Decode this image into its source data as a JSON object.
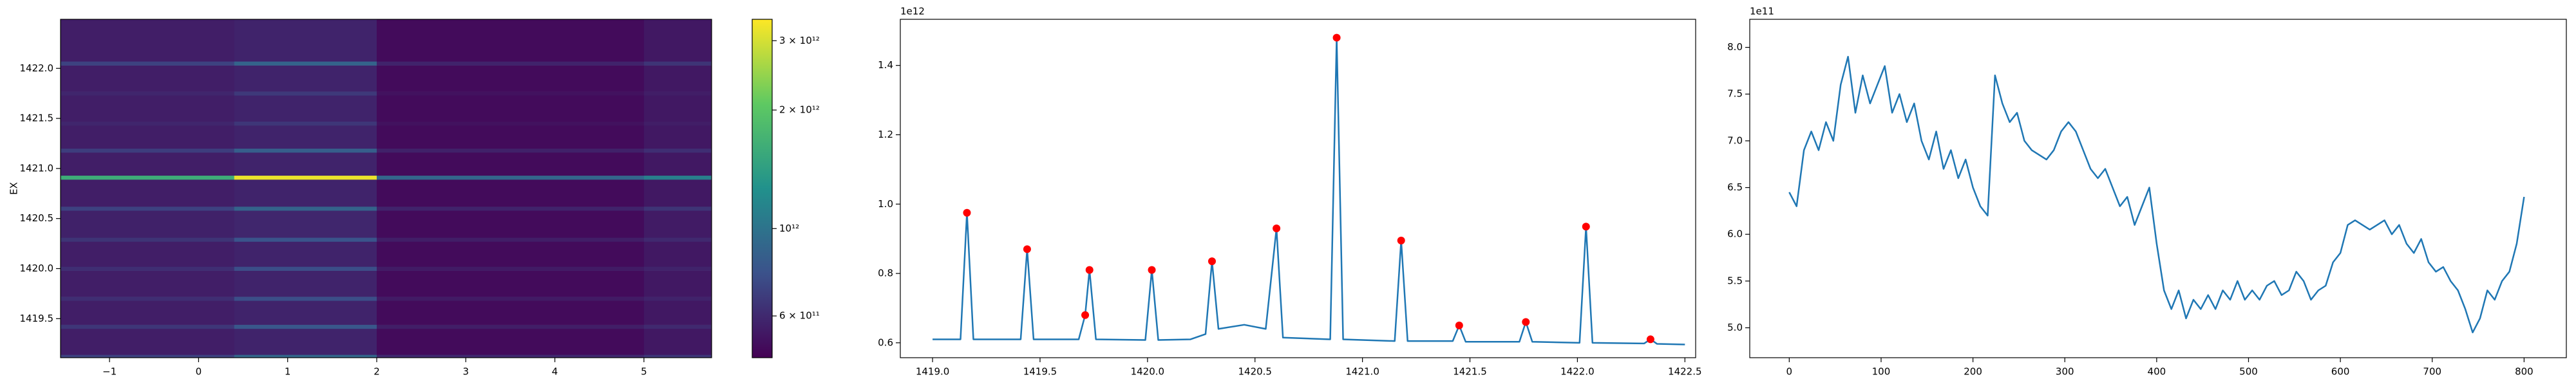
{
  "chart_data": [
    {
      "type": "heatmap",
      "ylabel": "EX",
      "xlim": [
        -1.55,
        5.76
      ],
      "ylim": [
        1419.11,
        1422.49
      ],
      "xticks": [
        {
          "value": -1,
          "label": "−1"
        },
        0,
        1,
        2,
        3,
        4,
        5
      ],
      "yticks": [
        1419.5,
        {
          "value": 1420,
          "label": "1420.0"
        },
        1420.5,
        {
          "value": 1421,
          "label": "1421.0"
        },
        1421.5,
        {
          "value": 1422,
          "label": "1422.0"
        }
      ],
      "colormap": [
        "#440154",
        "#3b528b",
        "#21918c",
        "#5ec962",
        "#fde725"
      ],
      "x_edges": [
        -1.55,
        0.4,
        2.0,
        5.0,
        5.76
      ],
      "y_edges": [
        1419.11,
        1419.14,
        1419.4,
        1419.44,
        1419.68,
        1419.72,
        1419.98,
        1420.02,
        1420.27,
        1420.31,
        1420.58,
        1420.62,
        1420.89,
        1420.93,
        1421.16,
        1421.2,
        1421.43,
        1421.47,
        1421.73,
        1421.77,
        1422.03,
        1422.07,
        1422.49
      ],
      "z": [
        [
          700000000000.0,
          900000000000.0,
          600000000000.0,
          650000000000.0
        ],
        [
          560000000000.0,
          580000000000.0,
          500000000000.0,
          540000000000.0
        ],
        [
          650000000000.0,
          800000000000.0,
          560000000000.0,
          600000000000.0
        ],
        [
          560000000000.0,
          580000000000.0,
          500000000000.0,
          540000000000.0
        ],
        [
          620000000000.0,
          750000000000.0,
          550000000000.0,
          580000000000.0
        ],
        [
          560000000000.0,
          580000000000.0,
          500000000000.0,
          540000000000.0
        ],
        [
          620000000000.0,
          750000000000.0,
          550000000000.0,
          580000000000.0
        ],
        [
          560000000000.0,
          580000000000.0,
          500000000000.0,
          540000000000.0
        ],
        [
          640000000000.0,
          780000000000.0,
          560000000000.0,
          600000000000.0
        ],
        [
          570000000000.0,
          590000000000.0,
          500000000000.0,
          550000000000.0
        ],
        [
          700000000000.0,
          880000000000.0,
          580000000000.0,
          640000000000.0
        ],
        [
          560000000000.0,
          580000000000.0,
          500000000000.0,
          540000000000.0
        ],
        [
          1600000000000.0,
          3200000000000.0,
          900000000000.0,
          1100000000000.0
        ],
        [
          560000000000.0,
          580000000000.0,
          500000000000.0,
          540000000000.0
        ],
        [
          680000000000.0,
          850000000000.0,
          570000000000.0,
          620000000000.0
        ],
        [
          560000000000.0,
          580000000000.0,
          500000000000.0,
          540000000000.0
        ],
        [
          590000000000.0,
          650000000000.0,
          520000000000.0,
          560000000000.0
        ],
        [
          560000000000.0,
          580000000000.0,
          500000000000.0,
          540000000000.0
        ],
        [
          590000000000.0,
          660000000000.0,
          520000000000.0,
          560000000000.0
        ],
        [
          560000000000.0,
          580000000000.0,
          500000000000.0,
          540000000000.0
        ],
        [
          700000000000.0,
          880000000000.0,
          580000000000.0,
          640000000000.0
        ],
        [
          560000000000.0,
          580000000000.0,
          500000000000.0,
          540000000000.0
        ]
      ],
      "colorbar": {
        "scale": "log",
        "clim": [
          470000000000.0,
          3400000000000.0
        ],
        "ticks": [
          {
            "value": 600000000000.0,
            "label": "6 × 10¹¹"
          },
          {
            "value": 1000000000000.0,
            "label": "10¹²"
          },
          {
            "value": 2000000000000.0,
            "label": "2 × 10¹²"
          },
          {
            "value": 3000000000000.0,
            "label": "3 × 10¹²"
          }
        ]
      }
    },
    {
      "type": "line",
      "offset_label": "1e12",
      "xlim": [
        1418.85,
        1422.55
      ],
      "ylim": [
        0.557,
        1.533
      ],
      "xticks": [
        {
          "value": 1419,
          "label": "1419.0"
        },
        1419.5,
        {
          "value": 1420,
          "label": "1420.0"
        },
        1420.5,
        {
          "value": 1421,
          "label": "1421.0"
        },
        1421.5,
        {
          "value": 1422,
          "label": "1422.0"
        },
        1422.5
      ],
      "yticks": [
        0.6,
        0.8,
        {
          "value": 1,
          "label": "1.0"
        },
        1.2,
        1.4
      ],
      "series": [
        {
          "style": "line",
          "color": "#1f77b4",
          "x": [
            1419.0,
            1419.13,
            1419.16,
            1419.19,
            1419.41,
            1419.44,
            1419.47,
            1419.68,
            1419.71,
            1419.73,
            1419.76,
            1419.99,
            1420.02,
            1420.05,
            1420.2,
            1420.27,
            1420.3,
            1420.33,
            1420.45,
            1420.55,
            1420.6,
            1420.63,
            1420.85,
            1420.88,
            1420.91,
            1421.15,
            1421.18,
            1421.21,
            1421.42,
            1421.45,
            1421.48,
            1421.73,
            1421.76,
            1421.79,
            1422.01,
            1422.04,
            1422.07,
            1422.31,
            1422.34,
            1422.37,
            1422.5
          ],
          "values": [
            0.61,
            0.61,
            0.975,
            0.61,
            0.61,
            0.87,
            0.61,
            0.61,
            0.68,
            0.81,
            0.61,
            0.608,
            0.81,
            0.608,
            0.61,
            0.625,
            0.835,
            0.64,
            0.652,
            0.64,
            0.93,
            0.615,
            0.61,
            1.48,
            0.61,
            0.605,
            0.895,
            0.605,
            0.605,
            0.65,
            0.603,
            0.603,
            0.66,
            0.603,
            0.6,
            0.935,
            0.6,
            0.598,
            0.61,
            0.597,
            0.595
          ]
        },
        {
          "style": "markers",
          "color": "#ff0000",
          "x": [
            1419.16,
            1419.44,
            1419.71,
            1419.73,
            1420.02,
            1420.3,
            1420.6,
            1420.88,
            1421.18,
            1421.45,
            1421.76,
            1422.04,
            1422.34
          ],
          "values": [
            0.975,
            0.87,
            0.68,
            0.81,
            0.81,
            0.835,
            0.93,
            1.48,
            0.895,
            0.65,
            0.66,
            0.935,
            0.61
          ]
        }
      ]
    },
    {
      "type": "line",
      "offset_label": "1e11",
      "xlim": [
        -43,
        846
      ],
      "ylim": [
        4.68,
        8.3
      ],
      "xticks": [
        0,
        100,
        200,
        300,
        400,
        500,
        600,
        700,
        800
      ],
      "yticks": [
        {
          "value": 5,
          "label": "5.0"
        },
        5.5,
        {
          "value": 6,
          "label": "6.0"
        },
        6.5,
        {
          "value": 7,
          "label": "7.0"
        },
        7.5,
        {
          "value": 8,
          "label": "8.0"
        }
      ],
      "series": [
        {
          "style": "line",
          "color": "#1f77b4",
          "x": [
            0,
            8,
            16,
            24,
            32,
            40,
            48,
            56,
            64,
            72,
            80,
            88,
            96,
            104,
            112,
            120,
            128,
            136,
            144,
            152,
            160,
            168,
            176,
            184,
            192,
            200,
            208,
            216,
            224,
            232,
            240,
            248,
            256,
            264,
            272,
            280,
            288,
            296,
            304,
            312,
            320,
            328,
            336,
            344,
            352,
            360,
            368,
            376,
            384,
            392,
            400,
            408,
            416,
            424,
            432,
            440,
            448,
            456,
            464,
            472,
            480,
            488,
            496,
            504,
            512,
            520,
            528,
            536,
            544,
            552,
            560,
            568,
            576,
            584,
            592,
            600,
            608,
            616,
            624,
            632,
            640,
            648,
            656,
            664,
            672,
            680,
            688,
            696,
            704,
            712,
            720,
            728,
            736,
            744,
            752,
            760,
            768,
            776,
            784,
            792,
            800
          ],
          "values": [
            6.45,
            6.3,
            6.9,
            7.1,
            6.9,
            7.2,
            7.0,
            7.6,
            7.9,
            7.3,
            7.7,
            7.4,
            7.6,
            7.8,
            7.3,
            7.5,
            7.2,
            7.4,
            7.0,
            6.8,
            7.1,
            6.7,
            6.9,
            6.6,
            6.8,
            6.5,
            6.3,
            6.2,
            7.7,
            7.4,
            7.2,
            7.3,
            7.0,
            6.9,
            6.85,
            6.8,
            6.9,
            7.1,
            7.2,
            7.1,
            6.9,
            6.7,
            6.6,
            6.7,
            6.5,
            6.3,
            6.4,
            6.1,
            6.3,
            6.5,
            5.9,
            5.4,
            5.2,
            5.4,
            5.1,
            5.3,
            5.2,
            5.35,
            5.2,
            5.4,
            5.3,
            5.5,
            5.3,
            5.4,
            5.3,
            5.45,
            5.5,
            5.35,
            5.4,
            5.6,
            5.5,
            5.3,
            5.4,
            5.45,
            5.7,
            5.8,
            6.1,
            6.15,
            6.1,
            6.05,
            6.1,
            6.15,
            6.0,
            6.1,
            5.9,
            5.8,
            5.95,
            5.7,
            5.6,
            5.65,
            5.5,
            5.4,
            5.2,
            4.95,
            5.1,
            5.4,
            5.3,
            5.5,
            5.6,
            5.9,
            6.4
          ]
        }
      ]
    }
  ]
}
